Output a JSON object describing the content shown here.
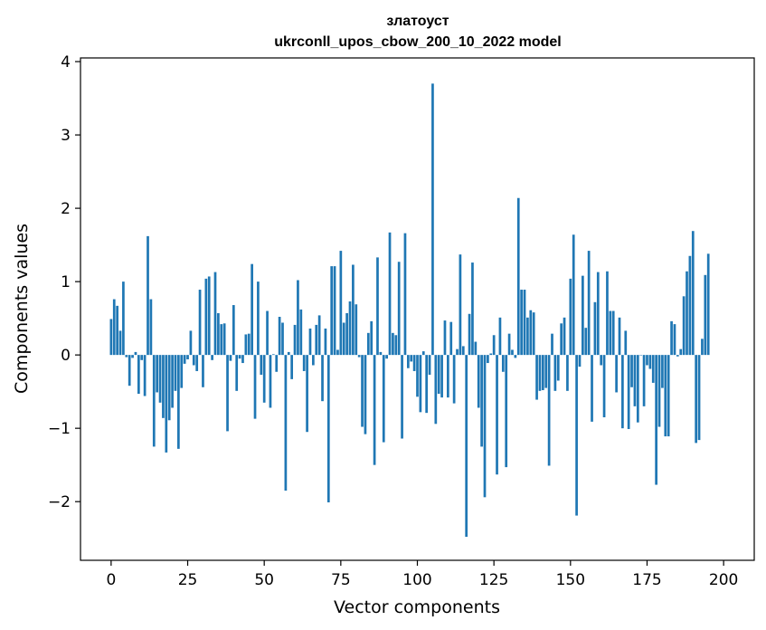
{
  "chart_data": {
    "type": "bar",
    "title": "златоуст",
    "subtitle": "ukrconll_upos_cbow_200_10_2022 model",
    "xlabel": "Vector components",
    "ylabel": "Components values",
    "xlim": [
      -10,
      210
    ],
    "ylim": [
      -2.8,
      4.05
    ],
    "xticks": [
      0,
      25,
      50,
      75,
      100,
      125,
      150,
      175,
      200
    ],
    "yticks": [
      -2,
      -1,
      0,
      1,
      2,
      3,
      4
    ],
    "xtick_labels": [
      "0",
      "25",
      "50",
      "75",
      "100",
      "125",
      "150",
      "175",
      "200"
    ],
    "ytick_labels": [
      "−2",
      "−1",
      "0",
      "1",
      "2",
      "3",
      "4"
    ],
    "bar_color": "#1f77b4",
    "values": [
      0.49,
      0.76,
      0.67,
      0.33,
      1.0,
      -0.03,
      -0.42,
      -0.04,
      0.04,
      -0.53,
      -0.07,
      -0.56,
      1.62,
      0.76,
      -1.25,
      -0.51,
      -0.65,
      -0.86,
      -1.33,
      -0.89,
      -0.72,
      -0.49,
      -1.28,
      -0.45,
      -0.12,
      -0.06,
      0.33,
      -0.14,
      -0.22,
      0.89,
      -0.44,
      1.04,
      1.07,
      -0.07,
      1.13,
      0.57,
      0.42,
      0.43,
      -1.04,
      -0.08,
      0.68,
      -0.49,
      -0.05,
      -0.11,
      0.28,
      0.29,
      1.24,
      -0.87,
      1.0,
      -0.27,
      -0.65,
      0.6,
      -0.72,
      0.01,
      -0.23,
      0.52,
      0.44,
      -1.85,
      0.04,
      -0.33,
      0.41,
      1.02,
      0.62,
      -0.22,
      -1.05,
      0.36,
      -0.14,
      0.41,
      0.54,
      -0.63,
      0.36,
      -2.01,
      1.21,
      1.21,
      0.07,
      1.42,
      0.44,
      0.57,
      0.73,
      1.23,
      0.69,
      -0.03,
      -0.98,
      -1.08,
      0.3,
      0.46,
      -1.5,
      1.33,
      0.04,
      -1.19,
      -0.05,
      1.67,
      0.3,
      0.27,
      1.27,
      -1.14,
      1.66,
      -0.18,
      -0.09,
      -0.22,
      -0.57,
      -0.78,
      0.05,
      -0.79,
      -0.27,
      3.7,
      -0.94,
      -0.53,
      -0.58,
      0.47,
      -0.58,
      0.45,
      -0.66,
      0.08,
      1.37,
      0.12,
      -2.48,
      0.56,
      1.26,
      0.18,
      -0.72,
      -1.25,
      -1.94,
      -0.11,
      0.02,
      0.27,
      -1.63,
      0.51,
      -0.23,
      -1.53,
      0.29,
      0.07,
      -0.04,
      2.14,
      0.89,
      0.89,
      0.51,
      0.61,
      0.58,
      -0.61,
      -0.49,
      -0.48,
      -0.45,
      -1.51,
      0.29,
      -0.49,
      -0.35,
      0.43,
      0.51,
      -0.49,
      1.04,
      1.64,
      -2.19,
      -0.16,
      1.08,
      0.37,
      1.42,
      -0.91,
      0.72,
      1.13,
      -0.14,
      -0.85,
      1.14,
      0.6,
      0.6,
      -0.51,
      0.51,
      -1.0,
      0.33,
      -1.01,
      -0.44,
      -0.7,
      -0.92,
      0.0,
      -0.7,
      -0.14,
      -0.19,
      -0.38,
      -1.77,
      -0.98,
      -0.45,
      -1.11,
      -1.11,
      0.46,
      0.42,
      -0.02,
      0.08,
      0.8,
      1.14,
      1.35,
      1.69,
      -1.2,
      -1.16,
      0.22,
      1.09,
      1.38
    ]
  }
}
